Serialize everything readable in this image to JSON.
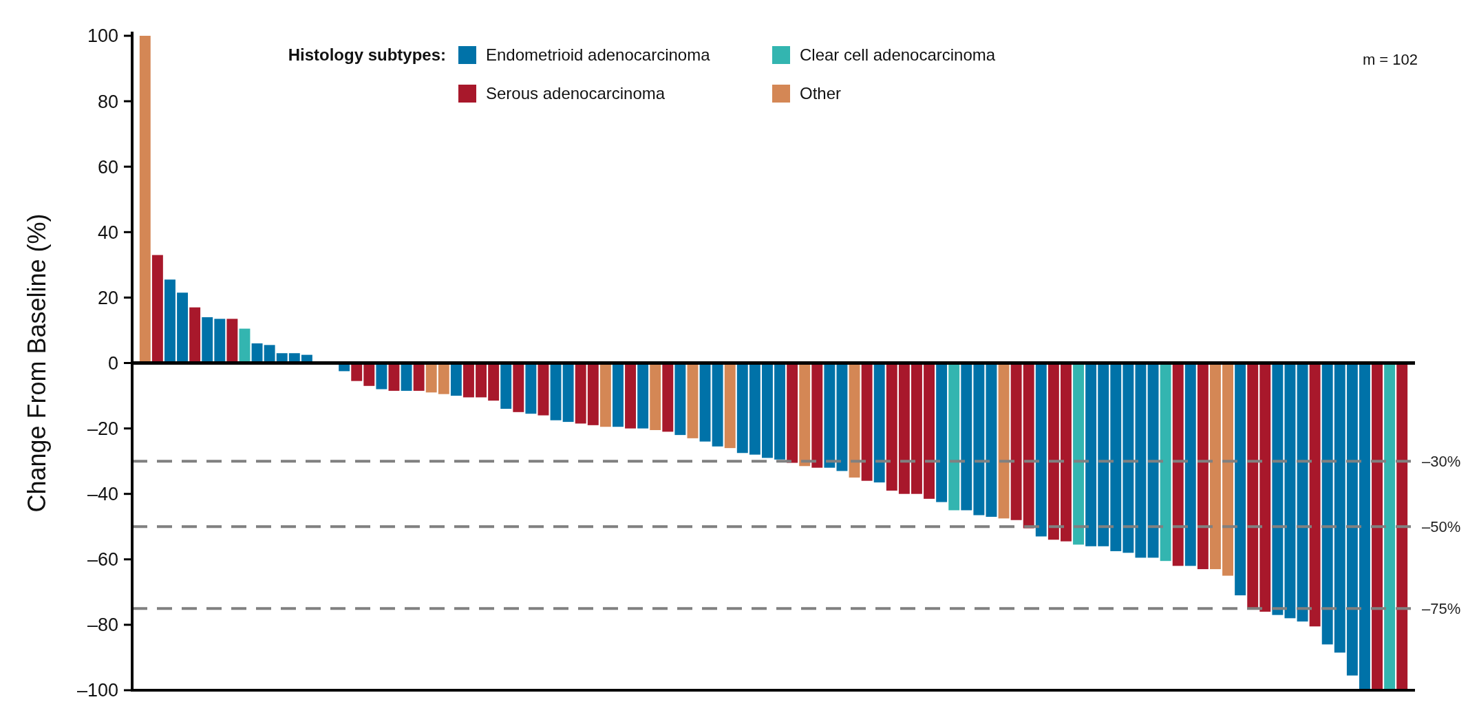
{
  "chart_data": {
    "type": "bar",
    "ylabel": "Change From Baseline (%)",
    "legend_title": "Histology subtypes:",
    "legend": "top",
    "annotations": [
      "m = 102"
    ],
    "categories": [
      null,
      null,
      null,
      null,
      null,
      null,
      null,
      null,
      null,
      null,
      null,
      null,
      null,
      null,
      null,
      null,
      null,
      null,
      null,
      null,
      null,
      null,
      null,
      null,
      null,
      null,
      null,
      null,
      null,
      null,
      null,
      null,
      null,
      null,
      null,
      null,
      null,
      null,
      null,
      null,
      null,
      null,
      null,
      null,
      null,
      null,
      null,
      null,
      null,
      null,
      null,
      null,
      null,
      null,
      null,
      null,
      null,
      null,
      null,
      null,
      null,
      null,
      null,
      null,
      null,
      null,
      null,
      null,
      null,
      null,
      null,
      null,
      null,
      null,
      null,
      null,
      null,
      null,
      null,
      null,
      null,
      null,
      null,
      null,
      null,
      null,
      null,
      null,
      null,
      null,
      null,
      null,
      null,
      null,
      null,
      null,
      null,
      null,
      null,
      null,
      null,
      null
    ],
    "ylim": [
      -100,
      100
    ],
    "stacked": true,
    "yticks": [
      {
        "value": -100,
        "label": "–100"
      },
      {
        "value": -80,
        "label": "–80"
      },
      {
        "value": -60,
        "label": "–60"
      },
      {
        "value": -40,
        "label": "–40"
      },
      {
        "value": -20,
        "label": "–20"
      },
      0,
      20,
      40,
      60,
      80,
      100
    ],
    "ref_lines": [
      {
        "axis": "y",
        "value": -30,
        "label": "–30%",
        "color": "#808080",
        "line_style": "dashed"
      },
      {
        "axis": "y",
        "value": -50,
        "label": "–50%",
        "color": "#808080",
        "line_style": "dashed"
      },
      {
        "axis": "y",
        "value": -75,
        "label": "–75%",
        "color": "#808080",
        "line_style": "dashed"
      }
    ],
    "series": [
      {
        "name": "Endometrioid adenocarcinoma",
        "color": "#0072a8",
        "values": [
          null,
          null,
          25.5,
          21.5,
          null,
          14,
          13.5,
          null,
          null,
          6,
          5.5,
          3,
          3,
          2.5,
          null,
          null,
          -2.5,
          null,
          null,
          -8,
          null,
          -8.5,
          null,
          null,
          null,
          -10,
          null,
          null,
          null,
          -14,
          null,
          -15.5,
          null,
          -17.5,
          -18,
          null,
          null,
          null,
          -19.5,
          null,
          -20,
          null,
          null,
          -22,
          null,
          -24,
          -25.5,
          null,
          -27.5,
          -28,
          -29,
          -29.5,
          null,
          null,
          null,
          -32,
          -33,
          null,
          null,
          -36.5,
          null,
          null,
          null,
          null,
          -42.5,
          null,
          -45,
          -46.5,
          -47,
          null,
          null,
          null,
          -53,
          null,
          null,
          null,
          -56,
          -56,
          -57.5,
          -58,
          -59.5,
          -59.5,
          null,
          null,
          -62,
          null,
          null,
          null,
          -71,
          null,
          null,
          -77,
          -78,
          -79,
          null,
          -86,
          -88.5,
          -95.5,
          -100,
          null,
          null,
          null
        ]
      },
      {
        "name": "Serous adenocarcinoma",
        "color": "#a8182b",
        "values": [
          null,
          33,
          null,
          null,
          17,
          null,
          null,
          13.5,
          null,
          null,
          null,
          null,
          null,
          null,
          null,
          null,
          null,
          -5.5,
          -7,
          null,
          -8.5,
          null,
          -8.5,
          null,
          null,
          null,
          -10.5,
          -10.5,
          -11.5,
          null,
          -15,
          null,
          -16,
          null,
          null,
          -18.5,
          -19,
          null,
          null,
          -20,
          null,
          null,
          -21,
          null,
          null,
          null,
          null,
          null,
          null,
          null,
          null,
          null,
          -30.5,
          null,
          -32,
          null,
          null,
          null,
          -36,
          null,
          -39,
          -40,
          -40,
          -41.5,
          null,
          null,
          null,
          null,
          null,
          null,
          -48,
          -50.5,
          null,
          -54,
          -54.5,
          null,
          null,
          null,
          null,
          null,
          null,
          null,
          null,
          -62,
          null,
          -63,
          null,
          null,
          null,
          -75,
          -76,
          null,
          null,
          null,
          -80.5,
          null,
          null,
          null,
          null,
          -100,
          null,
          -100
        ]
      },
      {
        "name": "Clear cell adenocarcinoma",
        "color": "#33b5b0",
        "values": [
          null,
          null,
          null,
          null,
          null,
          null,
          null,
          null,
          10.5,
          null,
          null,
          null,
          null,
          null,
          null,
          null,
          null,
          null,
          null,
          null,
          null,
          null,
          null,
          null,
          null,
          null,
          null,
          null,
          null,
          null,
          null,
          null,
          null,
          null,
          null,
          null,
          null,
          null,
          null,
          null,
          null,
          null,
          null,
          null,
          null,
          null,
          null,
          null,
          null,
          null,
          null,
          null,
          null,
          null,
          null,
          null,
          null,
          null,
          null,
          null,
          null,
          null,
          null,
          null,
          null,
          -45,
          null,
          null,
          null,
          null,
          null,
          null,
          null,
          null,
          null,
          -55.5,
          null,
          null,
          null,
          null,
          null,
          null,
          -60.5,
          null,
          null,
          null,
          null,
          null,
          null,
          null,
          null,
          null,
          null,
          null,
          null,
          null,
          null,
          null,
          null,
          null,
          -100,
          null
        ]
      },
      {
        "name": "Other",
        "color": "#d48755",
        "values": [
          100,
          null,
          null,
          null,
          null,
          null,
          null,
          null,
          null,
          null,
          null,
          null,
          null,
          null,
          null,
          null,
          null,
          null,
          null,
          null,
          null,
          null,
          null,
          -9,
          -9.5,
          null,
          null,
          null,
          null,
          null,
          null,
          null,
          null,
          null,
          null,
          null,
          null,
          -19.5,
          null,
          null,
          null,
          -20.5,
          null,
          null,
          -23,
          null,
          null,
          -26,
          null,
          null,
          null,
          null,
          null,
          -31.5,
          null,
          null,
          null,
          -35,
          null,
          null,
          null,
          null,
          null,
          null,
          null,
          null,
          null,
          null,
          null,
          -47.5,
          null,
          null,
          null,
          null,
          null,
          null,
          null,
          null,
          null,
          null,
          null,
          null,
          null,
          null,
          null,
          null,
          -63,
          -65,
          null,
          null,
          null,
          null,
          null,
          null,
          null,
          null,
          null,
          null,
          null,
          null,
          null,
          null
        ]
      }
    ]
  }
}
